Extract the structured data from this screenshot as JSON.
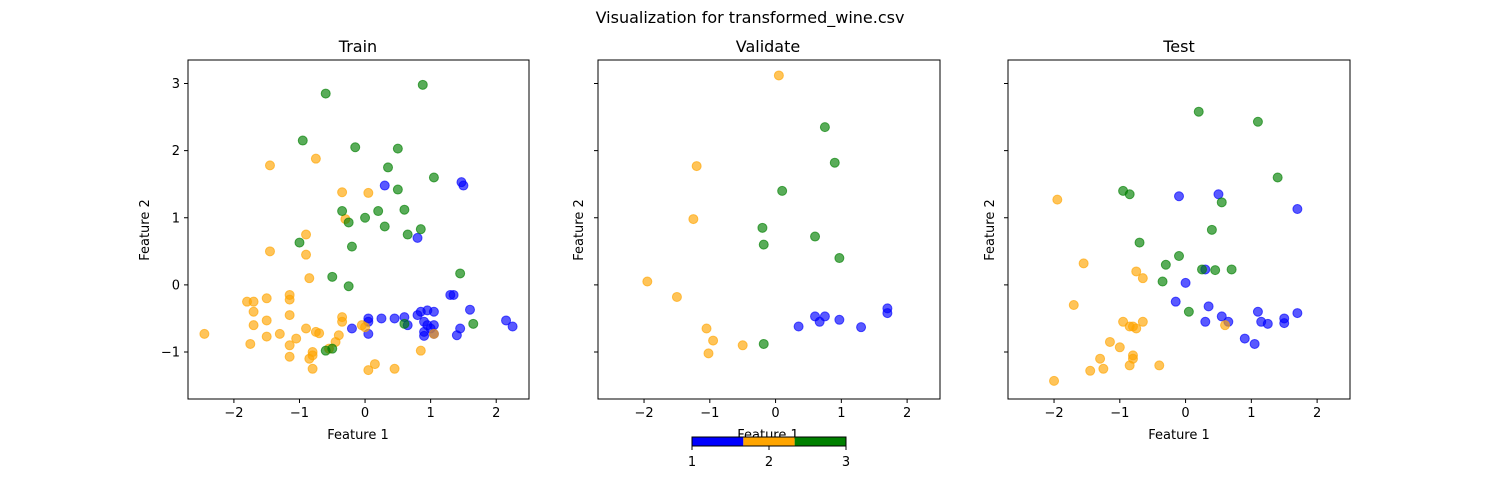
{
  "figure": {
    "title": "Visualization for transformed_wine.csv",
    "colors": {
      "1": "#0000ff",
      "2": "#ffa500",
      "3": "#008000"
    },
    "colorbar": {
      "ticks": [
        "1",
        "2",
        "3"
      ]
    }
  },
  "chart_data": [
    {
      "type": "scatter",
      "title": "Train",
      "xlabel": "Feature 1",
      "ylabel": "Feature 2",
      "xlim": [
        -2.7,
        2.5
      ],
      "ylim": [
        -1.7,
        3.35
      ],
      "xticks": [
        -2,
        -1,
        0,
        1,
        2
      ],
      "yticks": [
        -1,
        0,
        1,
        2,
        3
      ],
      "series": [
        {
          "name": "1",
          "points": [
            [
              0.3,
              1.48
            ],
            [
              1.47,
              1.53
            ],
            [
              1.5,
              1.48
            ],
            [
              0.8,
              0.7
            ],
            [
              -0.2,
              -0.65
            ],
            [
              0.05,
              -0.5
            ],
            [
              0.05,
              -0.55
            ],
            [
              0.25,
              -0.5
            ],
            [
              0.05,
              -0.73
            ],
            [
              0.45,
              -0.5
            ],
            [
              0.6,
              -0.48
            ],
            [
              0.65,
              -0.6
            ],
            [
              0.8,
              -0.45
            ],
            [
              0.85,
              -0.4
            ],
            [
              0.9,
              -0.55
            ],
            [
              0.95,
              -0.6
            ],
            [
              0.9,
              -0.7
            ],
            [
              0.95,
              -0.38
            ],
            [
              1.05,
              -0.4
            ],
            [
              1.0,
              -0.65
            ],
            [
              1.05,
              -0.6
            ],
            [
              1.05,
              -0.73
            ],
            [
              1.3,
              -0.15
            ],
            [
              1.35,
              -0.15
            ],
            [
              1.4,
              -0.75
            ],
            [
              1.45,
              -0.65
            ],
            [
              1.6,
              -0.37
            ],
            [
              2.15,
              -0.53
            ],
            [
              2.25,
              -0.62
            ],
            [
              0.9,
              -0.76
            ]
          ]
        },
        {
          "name": "2",
          "points": [
            [
              -1.45,
              1.78
            ],
            [
              -0.75,
              1.88
            ],
            [
              -0.35,
              1.38
            ],
            [
              0.05,
              1.37
            ],
            [
              -0.3,
              0.98
            ],
            [
              -0.9,
              0.75
            ],
            [
              -1.45,
              0.5
            ],
            [
              -0.9,
              0.45
            ],
            [
              -0.85,
              0.1
            ],
            [
              -2.45,
              -0.73
            ],
            [
              -1.8,
              -0.25
            ],
            [
              -1.7,
              -0.25
            ],
            [
              -1.7,
              -0.4
            ],
            [
              -1.7,
              -0.6
            ],
            [
              -1.75,
              -0.88
            ],
            [
              -1.5,
              -0.2
            ],
            [
              -1.5,
              -0.53
            ],
            [
              -1.5,
              -0.77
            ],
            [
              -1.3,
              -0.73
            ],
            [
              -1.15,
              -0.15
            ],
            [
              -1.15,
              -0.22
            ],
            [
              -1.15,
              -0.45
            ],
            [
              -1.15,
              -0.9
            ],
            [
              -1.15,
              -1.07
            ],
            [
              -1.05,
              -0.8
            ],
            [
              -0.9,
              -0.65
            ],
            [
              -0.85,
              -1.1
            ],
            [
              -0.8,
              -1.05
            ],
            [
              -0.8,
              -1.0
            ],
            [
              -0.8,
              -1.25
            ],
            [
              -0.75,
              -0.7
            ],
            [
              -0.7,
              -0.72
            ],
            [
              -0.55,
              -0.95
            ],
            [
              -0.45,
              -0.85
            ],
            [
              -0.4,
              -0.75
            ],
            [
              -0.35,
              -0.48
            ],
            [
              -0.35,
              -0.55
            ],
            [
              -0.05,
              -0.6
            ],
            [
              0.0,
              -0.63
            ],
            [
              0.05,
              -1.27
            ],
            [
              0.15,
              -1.18
            ],
            [
              0.45,
              -1.25
            ],
            [
              0.85,
              -0.98
            ],
            [
              1.05,
              -0.73
            ]
          ]
        },
        {
          "name": "3",
          "points": [
            [
              -0.6,
              2.85
            ],
            [
              0.88,
              2.98
            ],
            [
              -0.95,
              2.15
            ],
            [
              -0.15,
              2.05
            ],
            [
              0.5,
              2.03
            ],
            [
              0.35,
              1.75
            ],
            [
              1.05,
              1.6
            ],
            [
              0.5,
              1.42
            ],
            [
              -0.35,
              1.1
            ],
            [
              0.2,
              1.1
            ],
            [
              0.6,
              1.12
            ],
            [
              -0.25,
              0.93
            ],
            [
              0.0,
              1.0
            ],
            [
              0.3,
              0.87
            ],
            [
              0.85,
              0.83
            ],
            [
              0.65,
              0.75
            ],
            [
              -1.0,
              0.63
            ],
            [
              -0.2,
              0.57
            ],
            [
              -0.5,
              0.12
            ],
            [
              -0.25,
              -0.02
            ],
            [
              1.45,
              0.17
            ],
            [
              0.6,
              -0.58
            ],
            [
              1.65,
              -0.58
            ],
            [
              -0.6,
              -0.98
            ],
            [
              -0.5,
              -0.95
            ]
          ]
        }
      ]
    },
    {
      "type": "scatter",
      "title": "Validate",
      "xlabel": "Feature 1",
      "ylabel": "Feature 2",
      "xlim": [
        -2.7,
        2.5
      ],
      "ylim": [
        -1.7,
        3.35
      ],
      "xticks": [
        -2,
        -1,
        0,
        1,
        2
      ],
      "yticks": [],
      "series": [
        {
          "name": "1",
          "points": [
            [
              0.35,
              -0.62
            ],
            [
              0.6,
              -0.47
            ],
            [
              0.67,
              -0.55
            ],
            [
              0.75,
              -0.47
            ],
            [
              0.97,
              -0.52
            ],
            [
              1.3,
              -0.63
            ],
            [
              1.7,
              -0.35
            ],
            [
              1.7,
              -0.42
            ]
          ]
        },
        {
          "name": "2",
          "points": [
            [
              0.05,
              3.12
            ],
            [
              -1.2,
              1.77
            ],
            [
              -1.25,
              0.98
            ],
            [
              -1.95,
              0.05
            ],
            [
              -1.5,
              -0.18
            ],
            [
              -1.05,
              -0.65
            ],
            [
              -0.95,
              -0.83
            ],
            [
              -1.02,
              -1.02
            ],
            [
              -0.5,
              -0.9
            ]
          ]
        },
        {
          "name": "3",
          "points": [
            [
              0.75,
              2.35
            ],
            [
              0.9,
              1.82
            ],
            [
              0.1,
              1.4
            ],
            [
              -0.2,
              0.85
            ],
            [
              -0.18,
              0.6
            ],
            [
              0.6,
              0.72
            ],
            [
              0.97,
              0.4
            ],
            [
              -0.18,
              -0.88
            ]
          ]
        }
      ]
    },
    {
      "type": "scatter",
      "title": "Test",
      "xlabel": "Feature 1",
      "ylabel": "Feature 2",
      "xlim": [
        -2.7,
        2.5
      ],
      "ylim": [
        -1.7,
        3.35
      ],
      "xticks": [
        -2,
        -1,
        0,
        1,
        2
      ],
      "yticks": [],
      "series": [
        {
          "name": "1",
          "points": [
            [
              -0.1,
              1.32
            ],
            [
              0.5,
              1.35
            ],
            [
              1.7,
              1.13
            ],
            [
              0.3,
              0.23
            ],
            [
              0.0,
              0.03
            ],
            [
              -0.15,
              -0.25
            ],
            [
              0.35,
              -0.32
            ],
            [
              0.55,
              -0.47
            ],
            [
              0.3,
              -0.55
            ],
            [
              0.65,
              -0.55
            ],
            [
              1.1,
              -0.4
            ],
            [
              1.15,
              -0.55
            ],
            [
              1.25,
              -0.58
            ],
            [
              1.5,
              -0.5
            ],
            [
              1.5,
              -0.57
            ],
            [
              1.7,
              -0.42
            ],
            [
              0.9,
              -0.8
            ],
            [
              1.05,
              -0.88
            ]
          ]
        },
        {
          "name": "2",
          "points": [
            [
              -1.95,
              1.27
            ],
            [
              -1.55,
              0.32
            ],
            [
              -1.7,
              -0.3
            ],
            [
              -0.75,
              0.2
            ],
            [
              -0.65,
              0.1
            ],
            [
              -0.95,
              -0.55
            ],
            [
              -0.8,
              -0.62
            ],
            [
              -0.75,
              -0.65
            ],
            [
              -0.85,
              -0.62
            ],
            [
              -0.65,
              -0.55
            ],
            [
              -1.15,
              -0.85
            ],
            [
              -1.0,
              -0.93
            ],
            [
              -0.8,
              -1.05
            ],
            [
              -0.8,
              -1.1
            ],
            [
              -0.85,
              -1.2
            ],
            [
              -1.3,
              -1.1
            ],
            [
              -1.25,
              -1.25
            ],
            [
              -1.45,
              -1.28
            ],
            [
              -2.0,
              -1.43
            ],
            [
              -0.4,
              -1.2
            ],
            [
              0.6,
              -0.6
            ]
          ]
        },
        {
          "name": "3",
          "points": [
            [
              0.2,
              2.58
            ],
            [
              1.1,
              2.43
            ],
            [
              1.4,
              1.6
            ],
            [
              -0.95,
              1.4
            ],
            [
              -0.85,
              1.35
            ],
            [
              0.55,
              1.23
            ],
            [
              0.4,
              0.82
            ],
            [
              -0.7,
              0.63
            ],
            [
              -0.1,
              0.43
            ],
            [
              -0.3,
              0.3
            ],
            [
              0.25,
              0.23
            ],
            [
              0.45,
              0.22
            ],
            [
              0.7,
              0.23
            ],
            [
              -0.35,
              0.05
            ],
            [
              0.05,
              -0.4
            ]
          ]
        }
      ]
    }
  ]
}
